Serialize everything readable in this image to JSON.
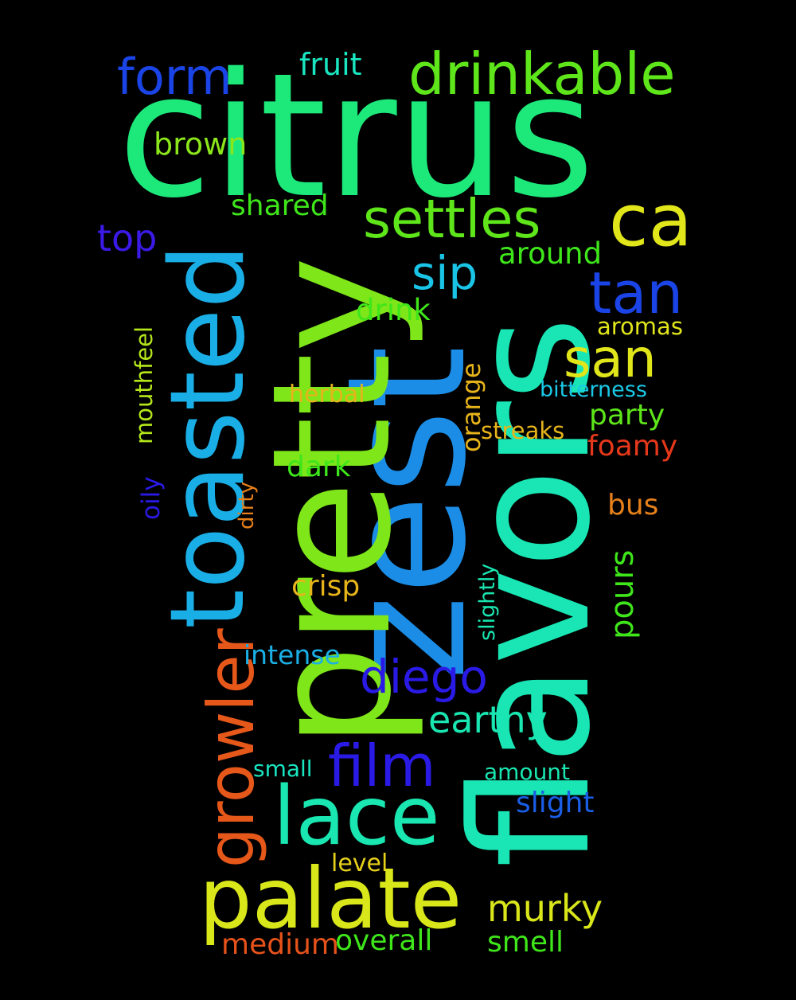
{
  "background": "#000000",
  "words": [
    {
      "id": "citrus",
      "text": "citrus",
      "color": "#1de87a"
    },
    {
      "id": "zest",
      "text": "zest",
      "color": "#1b8de6"
    },
    {
      "id": "pretty",
      "text": "pretty",
      "color": "#7fe61a"
    },
    {
      "id": "flavors",
      "text": "flavors",
      "color": "#19e6b4"
    },
    {
      "id": "toasted",
      "text": "toasted",
      "color": "#1aaee6"
    },
    {
      "id": "palate",
      "text": "palate",
      "color": "#d8e61a"
    },
    {
      "id": "lace",
      "text": "lace",
      "color": "#19e6b0"
    },
    {
      "id": "growler",
      "text": "growler",
      "color": "#e6571a"
    },
    {
      "id": "drinkable",
      "text": "drinkable",
      "color": "#5ee61a"
    },
    {
      "id": "ca",
      "text": "ca",
      "color": "#e0e61a"
    },
    {
      "id": "settles",
      "text": "settles",
      "color": "#5ee61a"
    },
    {
      "id": "form",
      "text": "form",
      "color": "#1a44e6"
    },
    {
      "id": "tan",
      "text": "tan",
      "color": "#1a44e6"
    },
    {
      "id": "san",
      "text": "san",
      "color": "#e0e61a"
    },
    {
      "id": "sip",
      "text": "sip",
      "color": "#1ac4e6"
    },
    {
      "id": "film",
      "text": "film",
      "color": "#2a1ae6"
    },
    {
      "id": "diego",
      "text": "diego",
      "color": "#2a1ae6"
    },
    {
      "id": "murky",
      "text": "murky",
      "color": "#d8e61a"
    },
    {
      "id": "earthy",
      "text": "earthy",
      "color": "#19e6b0"
    },
    {
      "id": "top",
      "text": "top",
      "color": "#3a1ae6"
    },
    {
      "id": "fruit",
      "text": "fruit",
      "color": "#19e6c0"
    },
    {
      "id": "brown",
      "text": "brown",
      "color": "#8ae61a"
    },
    {
      "id": "shared",
      "text": "shared",
      "color": "#3ee61a"
    },
    {
      "id": "around",
      "text": "around",
      "color": "#3ee61a"
    },
    {
      "id": "drink",
      "text": "drink",
      "color": "#3ee61a"
    },
    {
      "id": "aromas",
      "text": "aromas",
      "color": "#e0e61a"
    },
    {
      "id": "bitterness",
      "text": "bitterness",
      "color": "#1ac8e6"
    },
    {
      "id": "herbal",
      "text": "herbal",
      "color": "#e6b41a"
    },
    {
      "id": "orange",
      "text": "orange",
      "color": "#e6b41a"
    },
    {
      "id": "party",
      "text": "party",
      "color": "#5ee61a"
    },
    {
      "id": "streaks",
      "text": "streaks",
      "color": "#e6b41a"
    },
    {
      "id": "foamy",
      "text": "foamy",
      "color": "#e6381a"
    },
    {
      "id": "mouthfeel",
      "text": "mouthfeel",
      "color": "#b4e61a"
    },
    {
      "id": "oily",
      "text": "oily",
      "color": "#2a1ae6"
    },
    {
      "id": "dirty",
      "text": "dirty",
      "color": "#e6801a"
    },
    {
      "id": "dark",
      "text": "dark",
      "color": "#3ee61a"
    },
    {
      "id": "bus",
      "text": "bus",
      "color": "#e6801a"
    },
    {
      "id": "crisp",
      "text": "crisp",
      "color": "#e6b41a"
    },
    {
      "id": "pours",
      "text": "pours",
      "color": "#3ee61a"
    },
    {
      "id": "slightly",
      "text": "slightly",
      "color": "#19e6b0"
    },
    {
      "id": "intense",
      "text": "intense",
      "color": "#1ab0e6"
    },
    {
      "id": "small",
      "text": "small",
      "color": "#19e6c0"
    },
    {
      "id": "amount",
      "text": "amount",
      "color": "#19e6b0"
    },
    {
      "id": "slight",
      "text": "slight",
      "color": "#1a5ee6"
    },
    {
      "id": "level",
      "text": "level",
      "color": "#e6d01a"
    },
    {
      "id": "medium",
      "text": "medium",
      "color": "#e6521a"
    },
    {
      "id": "overall",
      "text": "overall",
      "color": "#3ee61a"
    },
    {
      "id": "smell",
      "text": "smell",
      "color": "#3ee61a"
    }
  ]
}
